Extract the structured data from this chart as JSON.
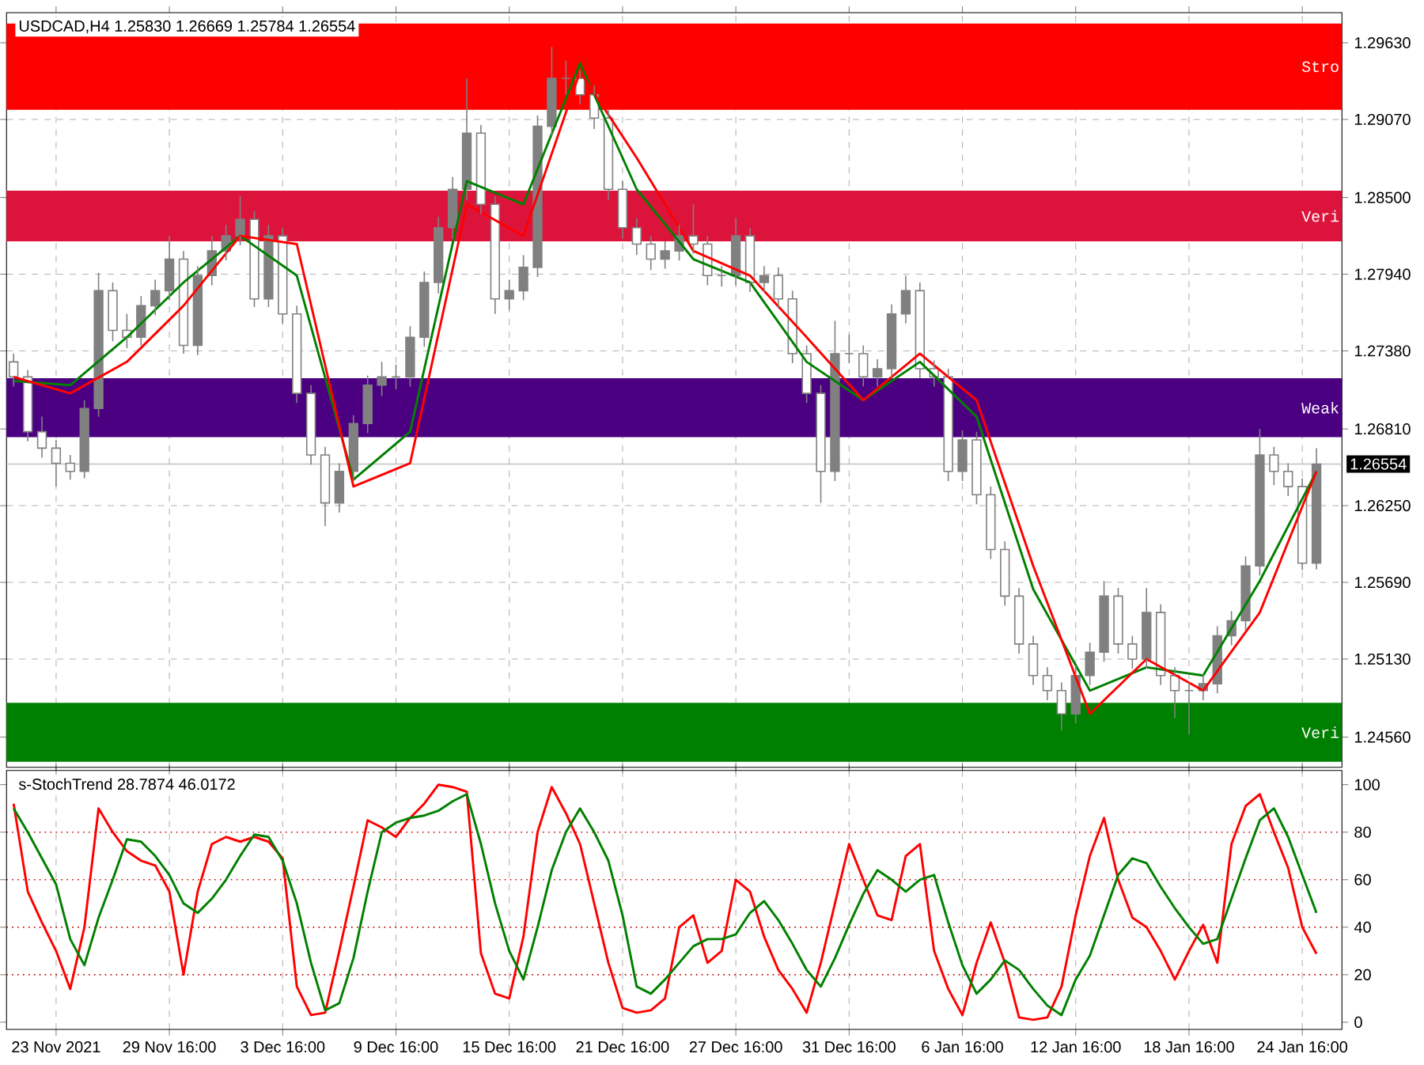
{
  "chart_data": [
    {
      "type": "candlestick",
      "title": "USDCAD,H4  1.25830 1.26669 1.25784 1.26554",
      "color": "#808080",
      "categories": [
        null,
        null,
        null,
        null,
        null,
        null,
        null,
        null,
        null,
        null,
        null,
        null,
        null,
        null,
        null,
        null,
        null,
        null,
        null,
        null,
        null,
        null,
        null,
        null,
        null,
        null,
        null,
        null,
        null,
        null,
        null,
        null,
        null,
        null,
        null,
        null,
        null,
        null,
        null,
        null,
        null,
        null,
        null,
        null,
        null,
        null,
        null,
        null,
        null,
        null,
        null,
        null,
        null,
        null,
        null,
        null,
        null,
        null,
        null,
        null,
        null,
        null,
        null,
        null,
        null,
        null,
        null,
        null,
        null,
        null,
        null,
        null,
        null,
        null,
        null,
        null,
        null,
        null,
        null,
        null,
        null,
        null,
        null,
        null,
        null,
        null,
        null,
        null,
        null,
        null,
        null,
        null,
        null
      ],
      "ohlc": [
        [
          1.273,
          1.2736,
          1.2712,
          1.2719
        ],
        [
          1.2719,
          1.2724,
          1.2672,
          1.2679
        ],
        [
          1.2679,
          1.269,
          1.266,
          1.2667
        ],
        [
          1.2667,
          1.2673,
          1.2639,
          1.2656
        ],
        [
          1.2656,
          1.2662,
          1.2644,
          1.265
        ],
        [
          1.265,
          1.2702,
          1.2645,
          1.2696
        ],
        [
          1.2696,
          1.2795,
          1.269,
          1.2782
        ],
        [
          1.2782,
          1.2788,
          1.2745,
          1.2753
        ],
        [
          1.2753,
          1.2765,
          1.274,
          1.2748
        ],
        [
          1.2748,
          1.2778,
          1.2742,
          1.2771
        ],
        [
          1.2771,
          1.279,
          1.2764,
          1.2782
        ],
        [
          1.2782,
          1.2822,
          1.2775,
          1.2805
        ],
        [
          1.2805,
          1.2811,
          1.2736,
          1.2742
        ],
        [
          1.2742,
          1.28,
          1.2735,
          1.2793
        ],
        [
          1.2793,
          1.2822,
          1.2786,
          1.2811
        ],
        [
          1.2811,
          1.283,
          1.2804,
          1.2822
        ],
        [
          1.2822,
          1.2851,
          1.2815,
          1.2834
        ],
        [
          1.2834,
          1.284,
          1.277,
          1.2776
        ],
        [
          1.2776,
          1.283,
          1.277,
          1.2822
        ],
        [
          1.2822,
          1.2828,
          1.2758,
          1.2765
        ],
        [
          1.2765,
          1.2771,
          1.27,
          1.2707
        ],
        [
          1.2707,
          1.2713,
          1.2655,
          1.2662
        ],
        [
          1.2662,
          1.2668,
          1.261,
          1.2627
        ],
        [
          1.2627,
          1.2656,
          1.262,
          1.265
        ],
        [
          1.265,
          1.2691,
          1.2644,
          1.2685
        ],
        [
          1.2685,
          1.272,
          1.2678,
          1.2713
        ],
        [
          1.2713,
          1.273,
          1.2705,
          1.2719
        ],
        [
          1.2719,
          1.2728,
          1.271,
          1.2719
        ],
        [
          1.2719,
          1.2756,
          1.2712,
          1.2748
        ],
        [
          1.2748,
          1.2796,
          1.2741,
          1.2788
        ],
        [
          1.2788,
          1.2836,
          1.278,
          1.2828
        ],
        [
          1.2828,
          1.2865,
          1.282,
          1.2856
        ],
        [
          1.2856,
          1.2937,
          1.2848,
          1.2897
        ],
        [
          1.2897,
          1.2903,
          1.2838,
          1.2845
        ],
        [
          1.2845,
          1.2851,
          1.2765,
          1.2776
        ],
        [
          1.2776,
          1.279,
          1.2768,
          1.2782
        ],
        [
          1.2782,
          1.2808,
          1.2775,
          1.2799
        ],
        [
          1.2799,
          1.291,
          1.2792,
          1.2902
        ],
        [
          1.2902,
          1.296,
          1.2895,
          1.2937
        ],
        [
          1.2937,
          1.295,
          1.2925,
          1.2937
        ],
        [
          1.2937,
          1.2943,
          1.2918,
          1.2925
        ],
        [
          1.2925,
          1.2932,
          1.29,
          1.2908
        ],
        [
          1.2908,
          1.2914,
          1.2848,
          1.2856
        ],
        [
          1.2856,
          1.2862,
          1.282,
          1.2828
        ],
        [
          1.2828,
          1.2835,
          1.2808,
          1.2816
        ],
        [
          1.2816,
          1.2822,
          1.2797,
          1.2805
        ],
        [
          1.2805,
          1.2818,
          1.2798,
          1.2811
        ],
        [
          1.2811,
          1.283,
          1.2804,
          1.2822
        ],
        [
          1.2822,
          1.2845,
          1.2809,
          1.2816
        ],
        [
          1.2816,
          1.2822,
          1.2786,
          1.2793
        ],
        [
          1.2793,
          1.28,
          1.2785,
          1.2793
        ],
        [
          1.2793,
          1.2835,
          1.2786,
          1.2822
        ],
        [
          1.2822,
          1.2828,
          1.2781,
          1.2788
        ],
        [
          1.2788,
          1.28,
          1.2781,
          1.2793
        ],
        [
          1.2793,
          1.2799,
          1.2769,
          1.2776
        ],
        [
          1.2776,
          1.2782,
          1.2729,
          1.2736
        ],
        [
          1.2736,
          1.2742,
          1.27,
          1.2707
        ],
        [
          1.2707,
          1.2713,
          1.2627,
          1.265
        ],
        [
          1.265,
          1.276,
          1.2643,
          1.2736
        ],
        [
          1.2736,
          1.275,
          1.2729,
          1.2736
        ],
        [
          1.2736,
          1.2742,
          1.2712,
          1.2719
        ],
        [
          1.2719,
          1.2732,
          1.2712,
          1.2725
        ],
        [
          1.2725,
          1.2772,
          1.2718,
          1.2765
        ],
        [
          1.2765,
          1.2793,
          1.2758,
          1.2782
        ],
        [
          1.2782,
          1.2788,
          1.2718,
          1.2725
        ],
        [
          1.2725,
          1.2731,
          1.2712,
          1.2719
        ],
        [
          1.2719,
          1.2725,
          1.2643,
          1.265
        ],
        [
          1.265,
          1.268,
          1.2643,
          1.2673
        ],
        [
          1.2673,
          1.2679,
          1.2626,
          1.2633
        ],
        [
          1.2633,
          1.2639,
          1.2586,
          1.2593
        ],
        [
          1.2593,
          1.2599,
          1.2552,
          1.2559
        ],
        [
          1.2559,
          1.2565,
          1.2517,
          1.2524
        ],
        [
          1.2524,
          1.253,
          1.2494,
          1.2501
        ],
        [
          1.2501,
          1.2507,
          1.2483,
          1.249
        ],
        [
          1.249,
          1.2496,
          1.2461,
          1.2473
        ],
        [
          1.2473,
          1.2508,
          1.2466,
          1.2501
        ],
        [
          1.2501,
          1.2525,
          1.2494,
          1.2518
        ],
        [
          1.2518,
          1.257,
          1.2511,
          1.2559
        ],
        [
          1.2559,
          1.2565,
          1.2517,
          1.2524
        ],
        [
          1.2524,
          1.253,
          1.2506,
          1.2513
        ],
        [
          1.2513,
          1.2565,
          1.2506,
          1.2547
        ],
        [
          1.2547,
          1.2553,
          1.2494,
          1.2501
        ],
        [
          1.2501,
          1.2507,
          1.247,
          1.249
        ],
        [
          1.249,
          1.2496,
          1.2458,
          1.249
        ],
        [
          1.249,
          1.2502,
          1.2483,
          1.2495
        ],
        [
          1.2495,
          1.2537,
          1.2488,
          1.253
        ],
        [
          1.253,
          1.2548,
          1.2523,
          1.2541
        ],
        [
          1.2541,
          1.2588,
          1.2534,
          1.2581
        ],
        [
          1.2581,
          1.2681,
          1.2574,
          1.2662
        ],
        [
          1.2662,
          1.2668,
          1.264,
          1.265
        ],
        [
          1.265,
          1.2656,
          1.2632,
          1.2639
        ],
        [
          1.2639,
          1.2645,
          1.2578,
          1.2583
        ],
        [
          1.2583,
          1.26669,
          1.25784,
          1.26554
        ]
      ],
      "series": [
        {
          "type": "line",
          "color": "#008000",
          "values": [
            1.2716,
            null,
            null,
            null,
            1.2713,
            null,
            null,
            null,
            1.2748,
            null,
            null,
            null,
            1.2788,
            null,
            null,
            null,
            1.2822,
            null,
            null,
            null,
            1.2793,
            null,
            null,
            null,
            1.2644,
            null,
            null,
            null,
            1.2679,
            null,
            null,
            null,
            1.2862,
            null,
            null,
            null,
            1.2845,
            null,
            null,
            null,
            1.2948,
            null,
            null,
            null,
            1.2856,
            null,
            null,
            null,
            1.2805,
            null,
            null,
            null,
            1.2788,
            null,
            null,
            null,
            1.273,
            null,
            null,
            null,
            1.2702,
            null,
            null,
            null,
            1.273,
            null,
            null,
            null,
            1.269,
            null,
            null,
            null,
            1.2564,
            null,
            null,
            null,
            1.249,
            null,
            null,
            null,
            1.2507,
            null,
            null,
            null,
            1.2501,
            null,
            null,
            null,
            1.257,
            null,
            null,
            null,
            1.265
          ]
        },
        {
          "type": "line",
          "color": "#ff0000",
          "values": [
            1.2719,
            null,
            null,
            null,
            1.2707,
            null,
            null,
            null,
            1.273,
            null,
            null,
            null,
            1.2771,
            null,
            null,
            null,
            1.2822,
            null,
            null,
            null,
            1.2816,
            null,
            null,
            null,
            1.2639,
            null,
            null,
            null,
            1.2656,
            null,
            null,
            null,
            1.2845,
            null,
            null,
            null,
            1.2822,
            null,
            null,
            null,
            1.2942,
            null,
            null,
            null,
            1.2879,
            null,
            null,
            null,
            1.2811,
            null,
            null,
            null,
            1.2793,
            null,
            null,
            null,
            1.2748,
            null,
            null,
            null,
            1.2702,
            null,
            null,
            null,
            1.2736,
            null,
            null,
            null,
            1.2702,
            null,
            null,
            null,
            1.2581,
            null,
            null,
            null,
            1.2473,
            null,
            null,
            null,
            1.2513,
            null,
            null,
            null,
            1.249,
            null,
            null,
            null,
            1.2547,
            null,
            null,
            null,
            1.265
          ]
        }
      ],
      "ylim": [
        1.2434,
        1.2985
      ],
      "yticks": [
        {
          "value": 1.2456,
          "label": "1.24560"
        },
        {
          "value": 1.2513,
          "label": "1.25130"
        },
        {
          "value": 1.2569,
          "label": "1.25690"
        },
        {
          "value": 1.2625,
          "label": "1.26250"
        },
        {
          "value": 1.2681,
          "label": "1.26810"
        },
        {
          "value": 1.2738,
          "label": "1.27380"
        },
        {
          "value": 1.2794,
          "label": "1.27940"
        },
        {
          "value": 1.285,
          "label": "1.28500"
        },
        {
          "value": 1.2907,
          "label": "1.29070"
        },
        {
          "value": 1.2963,
          "label": "1.29630"
        }
      ],
      "bands": [
        {
          "axis": "y",
          "from": 1.2914,
          "to": 1.2977,
          "label": "Stro",
          "color": "#ff0000"
        },
        {
          "axis": "y",
          "from": 1.2818,
          "to": 1.2855,
          "label": "Veri",
          "color": "#dc143c"
        },
        {
          "axis": "y",
          "from": 1.2675,
          "to": 1.2718,
          "label": "Weak",
          "color": "#4b0082"
        },
        {
          "axis": "y",
          "from": 1.2438,
          "to": 1.2481,
          "label": "Veri",
          "color": "#008000"
        }
      ],
      "ref_lines": [
        {
          "axis": "y",
          "value": 1.26554,
          "label": "1.26554",
          "color": "#c0c0c0"
        }
      ],
      "grid": true,
      "tick_labels": "y"
    },
    {
      "type": "line",
      "title": "s-StochTrend 28.7874 46.0172",
      "categories": [
        null,
        null,
        null,
        "23 Nov 2021",
        null,
        null,
        null,
        null,
        null,
        null,
        null,
        "29 Nov 16:00",
        null,
        null,
        null,
        null,
        null,
        null,
        null,
        "3 Dec 16:00",
        null,
        null,
        null,
        null,
        null,
        null,
        null,
        "9 Dec 16:00",
        null,
        null,
        null,
        null,
        null,
        null,
        null,
        "15 Dec 16:00",
        null,
        null,
        null,
        null,
        null,
        null,
        null,
        "21 Dec 16:00",
        null,
        null,
        null,
        null,
        null,
        null,
        null,
        "27 Dec 16:00",
        null,
        null,
        null,
        null,
        null,
        null,
        null,
        "31 Dec 16:00",
        null,
        null,
        null,
        null,
        null,
        null,
        null,
        "6 Jan 16:00",
        null,
        null,
        null,
        null,
        null,
        null,
        null,
        "12 Jan 16:00",
        null,
        null,
        null,
        null,
        null,
        null,
        null,
        "18 Jan 16:00",
        null,
        null,
        null,
        null,
        null,
        null,
        null,
        "24 Jan 16:00",
        null
      ],
      "series": [
        {
          "color": "#ff0000",
          "values": [
            92,
            55,
            42,
            30,
            14,
            40,
            90,
            80,
            72,
            68,
            66,
            55,
            20,
            55,
            75,
            78,
            76,
            78,
            76,
            69,
            15,
            3,
            4,
            30,
            57,
            85,
            82,
            78,
            86,
            92,
            100,
            99,
            97,
            29,
            12,
            10,
            36,
            80,
            99,
            88,
            75,
            50,
            25,
            6,
            4,
            5,
            10,
            40,
            45,
            25,
            30,
            60,
            55,
            36,
            22,
            14,
            4,
            25,
            50,
            75,
            60,
            45,
            43,
            70,
            75,
            30,
            14,
            3,
            25,
            42,
            25,
            2,
            1,
            2,
            15,
            45,
            70,
            86,
            60,
            44,
            40,
            30,
            18,
            30,
            41,
            25,
            75,
            91,
            96,
            80,
            65,
            40,
            28.7874
          ]
        },
        {
          "color": "#008000",
          "values": [
            90,
            80,
            69,
            58,
            35,
            24,
            44,
            60,
            77,
            76,
            70,
            62,
            50,
            46,
            52,
            60,
            70,
            79,
            78,
            68,
            50,
            25,
            5,
            8,
            27,
            55,
            80,
            84,
            86,
            87,
            89,
            93,
            96,
            75,
            50,
            30,
            18,
            40,
            64,
            80,
            90,
            80,
            68,
            45,
            15,
            12,
            18,
            25,
            32,
            35,
            35,
            37,
            46,
            51,
            43,
            33,
            22,
            15,
            27,
            41,
            54,
            64,
            60,
            55,
            60,
            62,
            42,
            24,
            12,
            18,
            26,
            22,
            14,
            7,
            3,
            18,
            28,
            45,
            62,
            69,
            67,
            57,
            48,
            40,
            33,
            35,
            52,
            69,
            85,
            90,
            78,
            62,
            46.0172
          ]
        }
      ],
      "ylim": [
        -3,
        106
      ],
      "yticks": [
        0,
        20,
        40,
        60,
        80,
        100
      ],
      "ref_lines": [
        {
          "axis": "y",
          "value": 20,
          "color": "#c00000",
          "line_style": "dotted"
        },
        {
          "axis": "y",
          "value": 40,
          "color": "#c00000",
          "line_style": "dotted"
        },
        {
          "axis": "y",
          "value": 60,
          "color": "#c00000",
          "line_style": "dotted"
        },
        {
          "axis": "y",
          "value": 80,
          "color": "#c00000",
          "line_style": "dotted"
        }
      ],
      "grid": "x"
    }
  ]
}
